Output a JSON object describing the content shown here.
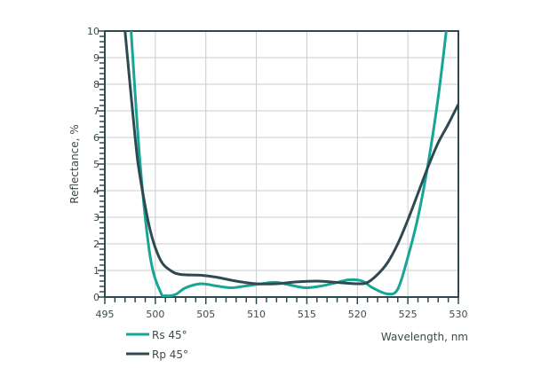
{
  "chart_data": {
    "type": "line",
    "title": "",
    "xlabel": "Wavelength, nm",
    "ylabel": "Reflectance, %",
    "xlim": [
      495,
      530
    ],
    "ylim": [
      0,
      10
    ],
    "xticks": [
      "495",
      "500",
      "505",
      "510",
      "515",
      "520",
      "525",
      "530"
    ],
    "yticks": [
      "0",
      "1",
      "2",
      "3",
      "4",
      "5",
      "6",
      "7",
      "8",
      "9",
      "10"
    ],
    "grid": true,
    "legend_position": "bottom-left",
    "series": [
      {
        "name": "Rs 45°",
        "color": "#17a595",
        "x": [
          497.6,
          498.5,
          499.5,
          500.5,
          501,
          502,
          503,
          504.5,
          506,
          507.5,
          509,
          510.5,
          512,
          514,
          515,
          516.5,
          518,
          519.2,
          520.5,
          521.5,
          523,
          524,
          525,
          526,
          527,
          528,
          528.8
        ],
        "y": [
          10,
          5,
          1.5,
          0.2,
          0.05,
          0.1,
          0.35,
          0.5,
          0.42,
          0.35,
          0.42,
          0.5,
          0.55,
          0.4,
          0.35,
          0.42,
          0.55,
          0.65,
          0.6,
          0.35,
          0.12,
          0.3,
          1.5,
          3,
          5,
          7.5,
          10
        ]
      },
      {
        "name": "Rp 45°",
        "color": "#2e4a50",
        "x": [
          497,
          498,
          498.5,
          499.5,
          500.5,
          501.5,
          502.5,
          504.5,
          506,
          508,
          510,
          512,
          514,
          516,
          518,
          520,
          521,
          522,
          523,
          524,
          525,
          526,
          527,
          528,
          529,
          530
        ],
        "y": [
          10,
          6,
          4.5,
          2.5,
          1.4,
          1.0,
          0.85,
          0.82,
          0.75,
          0.6,
          0.5,
          0.5,
          0.57,
          0.6,
          0.55,
          0.5,
          0.55,
          0.85,
          1.3,
          2.0,
          2.9,
          3.9,
          4.9,
          5.8,
          6.5,
          7.25
        ]
      }
    ]
  }
}
